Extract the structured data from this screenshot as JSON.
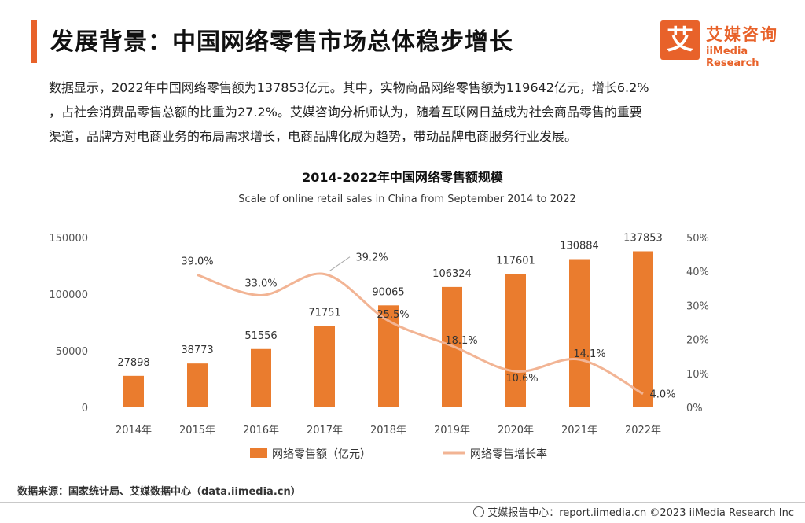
{
  "header": {
    "title": "发展背景：中国网络零售市场总体稳步增长",
    "logo_mark": "艾",
    "logo_cn": "艾媒咨询",
    "logo_en": "iiMedia Research"
  },
  "paragraph": {
    "line1": "数据显示，2022年中国网络零售额为137853亿元。其中，实物商品网络零售额为119642亿元，增长6.2%",
    "line2": "，占社会消费品零售总额的比重为27.2%。艾媒咨询分析师认为，随着互联网日益成为社会商品零售的重要",
    "line3": "渠道，品牌方对电商业务的布局需求增长，电商品牌化成为趋势，带动品牌电商服务行业发展。"
  },
  "chart_data": {
    "type": "bar",
    "title": "2014-2022年中国网络零售额规模",
    "subtitle": "Scale of online retail sales in China from September 2014 to 2022",
    "categories": [
      "2014年",
      "2015年",
      "2016年",
      "2017年",
      "2018年",
      "2019年",
      "2020年",
      "2021年",
      "2022年"
    ],
    "series": [
      {
        "name": "网络零售额（亿元）",
        "type": "bar",
        "axis": "left",
        "color": "#ea7c2e",
        "values": [
          27898,
          38773,
          51556,
          71751,
          90065,
          106324,
          117601,
          130884,
          137853
        ],
        "labels": [
          "27898",
          "38773",
          "51556",
          "71751",
          "90065",
          "106324",
          "117601",
          "130884",
          "137853"
        ]
      },
      {
        "name": "网络零售增长率",
        "type": "line",
        "axis": "right",
        "color": "#f2b494",
        "values": [
          null,
          39.0,
          33.0,
          39.2,
          25.5,
          18.1,
          10.6,
          14.1,
          4.0
        ],
        "labels": [
          "",
          "39.0%",
          "33.0%",
          "39.2%",
          "25.5%",
          "18.1%",
          "10.6%",
          "14.1%",
          "4.0%"
        ]
      }
    ],
    "y_left": {
      "ylim": [
        0,
        150000
      ],
      "ticks": [
        "0",
        "50000",
        "100000",
        "150000"
      ],
      "tick_values": [
        0,
        50000,
        100000,
        150000
      ]
    },
    "y_right": {
      "ylim": [
        0,
        50
      ],
      "ticks": [
        "0%",
        "10%",
        "20%",
        "30%",
        "40%",
        "50%"
      ],
      "tick_values": [
        0,
        10,
        20,
        30,
        40,
        50
      ]
    },
    "grid": false,
    "legend_position": "bottom"
  },
  "source": "数据来源：国家统计局、艾媒数据中心（data.iimedia.cn）",
  "footer": {
    "icon": "globe-icon",
    "text": "艾媒报告中心：report.iimedia.cn    ©2023  iiMedia Research  Inc"
  }
}
